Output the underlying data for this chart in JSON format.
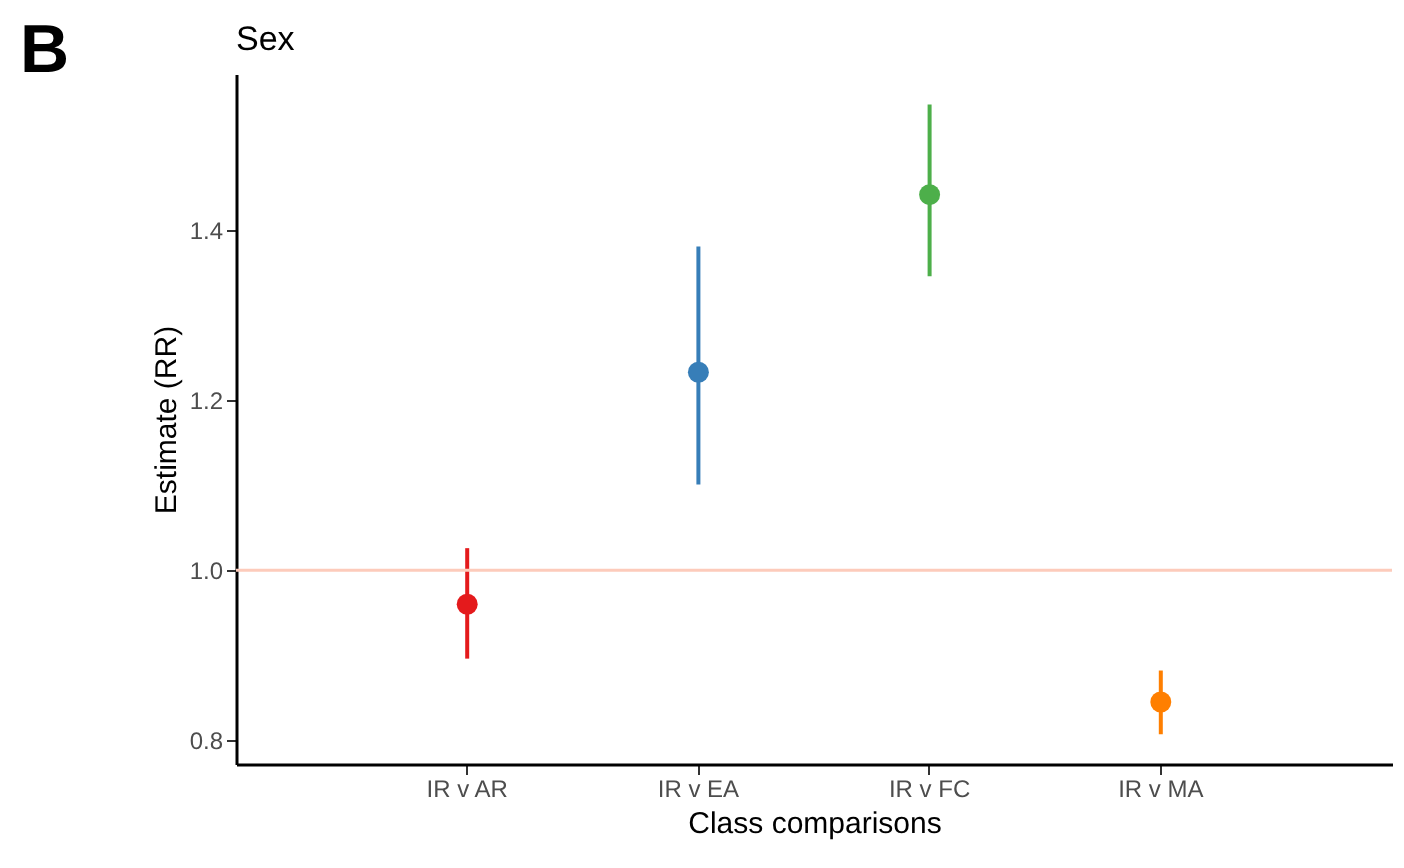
{
  "chart_data": {
    "type": "scatter",
    "title": "Sex",
    "xlabel": "Class comparisons",
    "ylabel": "Estimate (RR)",
    "annotations": [
      "B"
    ],
    "categories": [
      "IR v AR",
      "IR v EA",
      "IR v FC",
      "IR v MA"
    ],
    "values": [
      0.96,
      1.233,
      1.442,
      0.845
    ],
    "errors": [
      [
        0.896,
        1.026
      ],
      [
        1.101,
        1.381
      ],
      [
        1.346,
        1.548
      ],
      [
        0.807,
        0.882
      ]
    ],
    "colors": [
      "#e41a1c",
      "#377eb8",
      "#4daf4a",
      "#ff7f00"
    ],
    "ylim": [
      0.772,
      1.584
    ],
    "yticks": [
      {
        "value": 0.8,
        "label": "0.8"
      },
      {
        "value": 1.0,
        "label": "1.0"
      },
      {
        "value": 1.2,
        "label": "1.2"
      },
      {
        "value": 1.4,
        "label": "1.4"
      }
    ],
    "ref_lines": [
      {
        "axis": "y",
        "value": 1.0,
        "label": null,
        "color": "#fdcbbb"
      }
    ],
    "marker": "circle",
    "grid": false
  }
}
